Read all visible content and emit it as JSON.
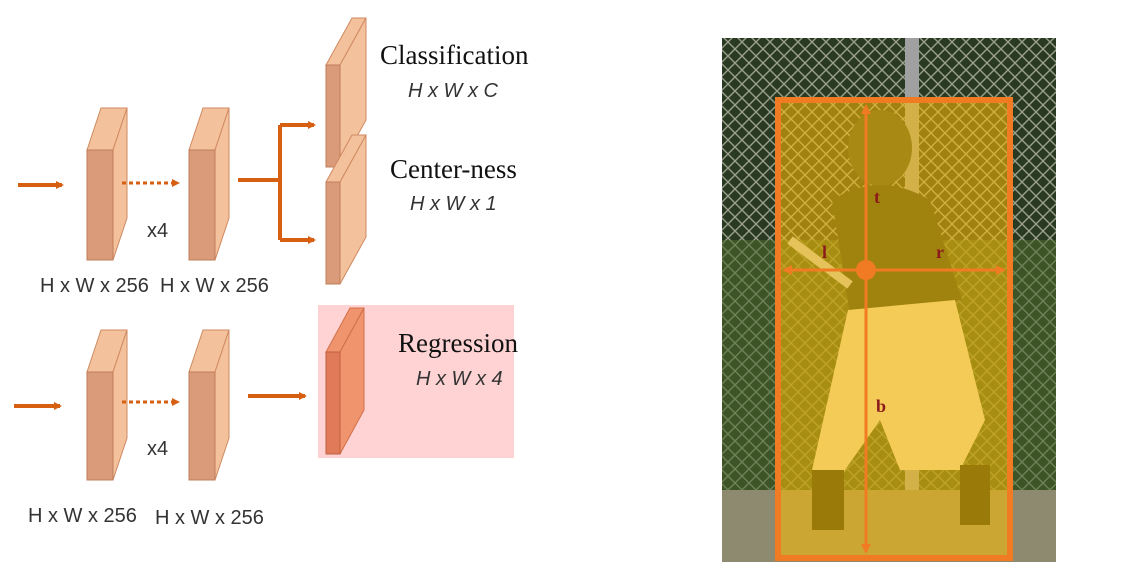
{
  "heads": {
    "classification": {
      "title": "Classification",
      "shape": "H x W x C"
    },
    "centerness": {
      "title": "Center-ness",
      "shape": "H x W x 1"
    },
    "regression": {
      "title": "Regression",
      "shape": "H x W x 4"
    }
  },
  "towers": {
    "repeat_label": "x4",
    "feature_shape": "H x W x 256"
  },
  "box_labels": {
    "top": "t",
    "left": "l",
    "right": "r",
    "bottom": "b"
  },
  "colors": {
    "arrow": "#d65f12",
    "layer_face": "#d99b79",
    "layer_side": "#f3c19c",
    "regression_bg": "#ffd3d3",
    "box": "#f07b22",
    "overlay": "#ffbe00",
    "label": "#8b1a1a"
  }
}
